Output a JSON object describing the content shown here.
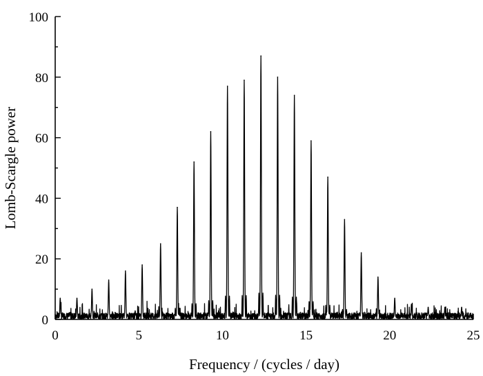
{
  "chart_data": {
    "type": "line",
    "title": "",
    "xlabel": "Frequency / (cycles / day)",
    "ylabel": "Lomb-Scargle power",
    "xlim": [
      0,
      25
    ],
    "ylim": [
      0,
      100
    ],
    "xticks": [
      "0",
      "5",
      "10",
      "15",
      "20",
      "25"
    ],
    "yticks": [
      "0",
      "20",
      "40",
      "60",
      "80",
      "100"
    ],
    "grid": false,
    "legend": "none",
    "line_color": "#000000",
    "series": [
      {
        "main_peaks": [
          {
            "x": 0.3,
            "y": 7
          },
          {
            "x": 1.3,
            "y": 7
          },
          {
            "x": 2.2,
            "y": 10
          },
          {
            "x": 3.2,
            "y": 13
          },
          {
            "x": 4.2,
            "y": 16
          },
          {
            "x": 5.2,
            "y": 18
          },
          {
            "x": 6.3,
            "y": 25
          },
          {
            "x": 7.3,
            "y": 37
          },
          {
            "x": 8.3,
            "y": 52
          },
          {
            "x": 9.3,
            "y": 62
          },
          {
            "x": 10.3,
            "y": 77
          },
          {
            "x": 11.3,
            "y": 79
          },
          {
            "x": 12.3,
            "y": 87
          },
          {
            "x": 13.3,
            "y": 80
          },
          {
            "x": 14.3,
            "y": 74
          },
          {
            "x": 15.3,
            "y": 59
          },
          {
            "x": 16.3,
            "y": 47
          },
          {
            "x": 17.3,
            "y": 33
          },
          {
            "x": 18.3,
            "y": 22
          },
          {
            "x": 19.3,
            "y": 14
          },
          {
            "x": 20.3,
            "y": 7
          },
          {
            "x": 21.3,
            "y": 5
          },
          {
            "x": 22.3,
            "y": 4
          },
          {
            "x": 23.3,
            "y": 4
          },
          {
            "x": 24.3,
            "y": 4
          }
        ]
      }
    ]
  }
}
